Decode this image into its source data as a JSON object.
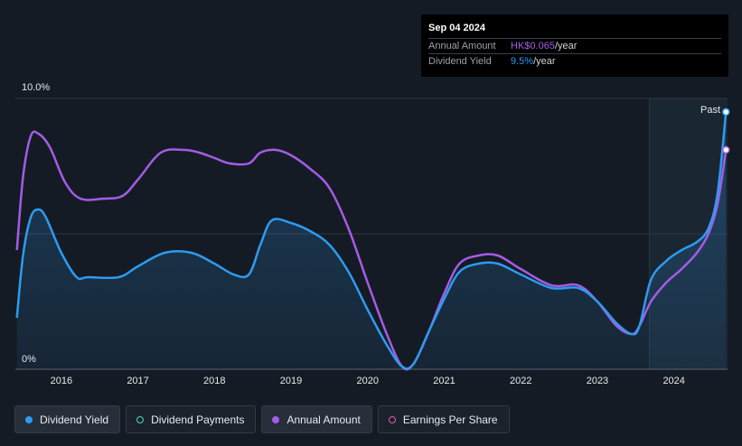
{
  "tooltip": {
    "date": "Sep 04 2024",
    "rows": [
      {
        "label": "Annual Amount",
        "value": "HK$0.065",
        "unit": "/year"
      },
      {
        "label": "Dividend Yield",
        "value": "9.5%",
        "unit": "/year"
      }
    ]
  },
  "past_label": "Past",
  "legend": [
    {
      "label": "Dividend Yield",
      "color": "#2d9bf0",
      "style": "filled"
    },
    {
      "label": "Dividend Payments",
      "color": "#3fd6c4",
      "style": "hollow"
    },
    {
      "label": "Annual Amount",
      "color": "#a45ce6",
      "style": "filled"
    },
    {
      "label": "Earnings Per Share",
      "color": "#e05aa8",
      "style": "hollow"
    }
  ],
  "chart_data": {
    "type": "line",
    "title": "",
    "xlabel": "",
    "ylabel": "",
    "y_tick_labels": [
      "10.0%",
      "0%"
    ],
    "ylim": [
      0,
      10
    ],
    "xlim": [
      2015.4,
      2024.7
    ],
    "x_ticks": [
      2016,
      2017,
      2018,
      2019,
      2020,
      2021,
      2022,
      2023,
      2024
    ],
    "x_tick_labels": [
      "2016",
      "2017",
      "2018",
      "2019",
      "2020",
      "2021",
      "2022",
      "2023",
      "2024"
    ],
    "past_start": 2023.68,
    "grid": true,
    "legend_position": "bottom-left",
    "series": [
      {
        "name": "Dividend Yield",
        "color": "#2d9bf0",
        "fill": true,
        "points": [
          [
            2015.42,
            1.9
          ],
          [
            2015.5,
            4.2
          ],
          [
            2015.6,
            5.6
          ],
          [
            2015.7,
            5.9
          ],
          [
            2015.8,
            5.6
          ],
          [
            2016.0,
            4.3
          ],
          [
            2016.2,
            3.4
          ],
          [
            2016.35,
            3.4
          ],
          [
            2016.75,
            3.4
          ],
          [
            2017.0,
            3.8
          ],
          [
            2017.35,
            4.3
          ],
          [
            2017.7,
            4.3
          ],
          [
            2018.0,
            3.9
          ],
          [
            2018.25,
            3.5
          ],
          [
            2018.45,
            3.5
          ],
          [
            2018.6,
            4.6
          ],
          [
            2018.75,
            5.5
          ],
          [
            2019.0,
            5.4
          ],
          [
            2019.25,
            5.1
          ],
          [
            2019.5,
            4.6
          ],
          [
            2019.75,
            3.6
          ],
          [
            2020.0,
            2.2
          ],
          [
            2020.25,
            0.9
          ],
          [
            2020.45,
            0.1
          ],
          [
            2020.6,
            0.2
          ],
          [
            2020.8,
            1.4
          ],
          [
            2021.0,
            2.6
          ],
          [
            2021.2,
            3.6
          ],
          [
            2021.45,
            3.9
          ],
          [
            2021.7,
            3.9
          ],
          [
            2022.0,
            3.5
          ],
          [
            2022.4,
            3.0
          ],
          [
            2022.75,
            3.0
          ],
          [
            2023.0,
            2.5
          ],
          [
            2023.25,
            1.7
          ],
          [
            2023.45,
            1.3
          ],
          [
            2023.55,
            1.6
          ],
          [
            2023.7,
            3.3
          ],
          [
            2023.9,
            4.0
          ],
          [
            2024.1,
            4.4
          ],
          [
            2024.3,
            4.7
          ],
          [
            2024.45,
            5.2
          ],
          [
            2024.57,
            6.5
          ],
          [
            2024.68,
            9.5
          ]
        ]
      },
      {
        "name": "Annual Amount",
        "color": "#a45ce6",
        "fill": false,
        "points": [
          [
            2015.42,
            4.4
          ],
          [
            2015.5,
            7.1
          ],
          [
            2015.6,
            8.6
          ],
          [
            2015.7,
            8.7
          ],
          [
            2015.85,
            8.2
          ],
          [
            2016.05,
            6.9
          ],
          [
            2016.25,
            6.3
          ],
          [
            2016.55,
            6.3
          ],
          [
            2016.8,
            6.4
          ],
          [
            2017.0,
            7.0
          ],
          [
            2017.3,
            8.0
          ],
          [
            2017.6,
            8.1
          ],
          [
            2017.8,
            8.0
          ],
          [
            2018.0,
            7.8
          ],
          [
            2018.2,
            7.6
          ],
          [
            2018.45,
            7.6
          ],
          [
            2018.6,
            8.0
          ],
          [
            2018.8,
            8.1
          ],
          [
            2019.0,
            7.9
          ],
          [
            2019.25,
            7.4
          ],
          [
            2019.5,
            6.7
          ],
          [
            2019.75,
            5.2
          ],
          [
            2020.0,
            3.2
          ],
          [
            2020.25,
            1.3
          ],
          [
            2020.45,
            0.1
          ],
          [
            2020.6,
            0.2
          ],
          [
            2020.8,
            1.4
          ],
          [
            2021.0,
            2.8
          ],
          [
            2021.2,
            3.9
          ],
          [
            2021.45,
            4.2
          ],
          [
            2021.7,
            4.2
          ],
          [
            2022.0,
            3.7
          ],
          [
            2022.4,
            3.1
          ],
          [
            2022.75,
            3.1
          ],
          [
            2023.0,
            2.5
          ],
          [
            2023.25,
            1.6
          ],
          [
            2023.45,
            1.3
          ],
          [
            2023.55,
            1.6
          ],
          [
            2023.7,
            2.5
          ],
          [
            2023.9,
            3.2
          ],
          [
            2024.1,
            3.7
          ],
          [
            2024.3,
            4.3
          ],
          [
            2024.45,
            5.0
          ],
          [
            2024.57,
            6.1
          ],
          [
            2024.68,
            8.1
          ]
        ]
      }
    ]
  }
}
